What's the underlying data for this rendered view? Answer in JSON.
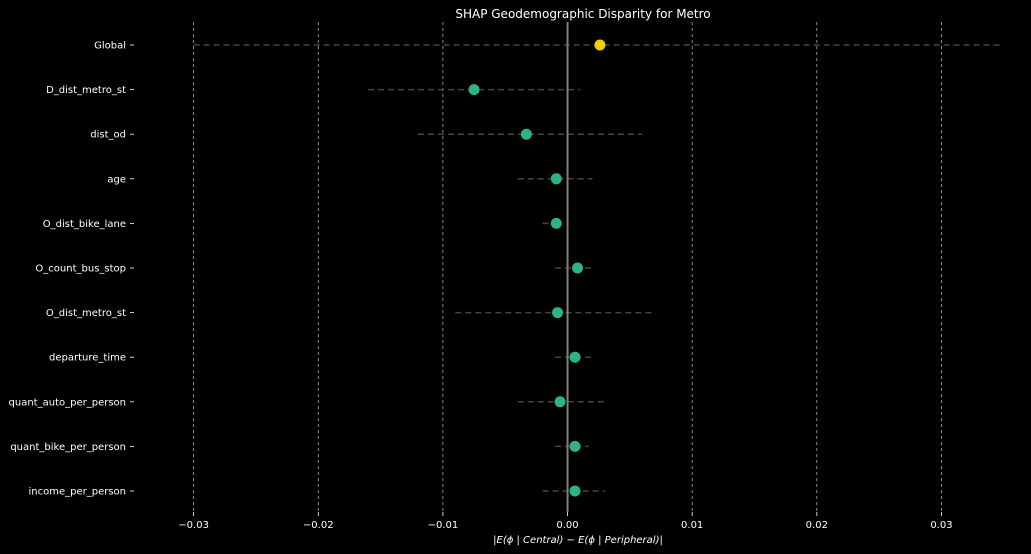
{
  "chart_data": {
    "type": "scatter",
    "title": "SHAP Geodemographic Disparity for Metro",
    "xlabel": "|E(ϕ | Central) − E(ϕ | Peripheral)|",
    "ylabel": "",
    "xlim": [
      -0.0335,
      0.0355
    ],
    "xticks": [
      -0.03,
      -0.02,
      -0.01,
      0.0,
      0.01,
      0.02,
      0.03
    ],
    "xtick_labels": [
      "−0.03",
      "−0.02",
      "−0.01",
      "0.00",
      "0.01",
      "0.02",
      "0.03"
    ],
    "grid": "vertical dashed",
    "categories": [
      "Global",
      "D_dist_metro_st",
      "dist_od",
      "age",
      "O_dist_bike_lane",
      "O_count_bus_stop",
      "O_dist_metro_st",
      "departure_time",
      "quant_auto_per_person",
      "quant_bike_per_person",
      "income_per_person"
    ],
    "values": [
      0.0026,
      -0.0075,
      -0.0033,
      -0.0009,
      -0.0009,
      0.0008,
      -0.0008,
      0.0006,
      -0.0006,
      0.0006,
      0.0006
    ],
    "ci_low": [
      -0.03,
      -0.016,
      -0.012,
      -0.004,
      -0.002,
      -0.001,
      -0.009,
      -0.001,
      -0.004,
      -0.001,
      -0.002
    ],
    "ci_high": [
      0.035,
      0.001,
      0.006,
      0.002,
      -0.0005,
      0.002,
      0.007,
      0.002,
      0.003,
      0.0017,
      0.003
    ],
    "colors": {
      "global": "#f0d000",
      "feature": "#2db38a",
      "background": "#000000",
      "text": "#ffffff",
      "zero_line": "#808080",
      "grid": "#aaaaaa",
      "ci_line": "#444444"
    }
  }
}
